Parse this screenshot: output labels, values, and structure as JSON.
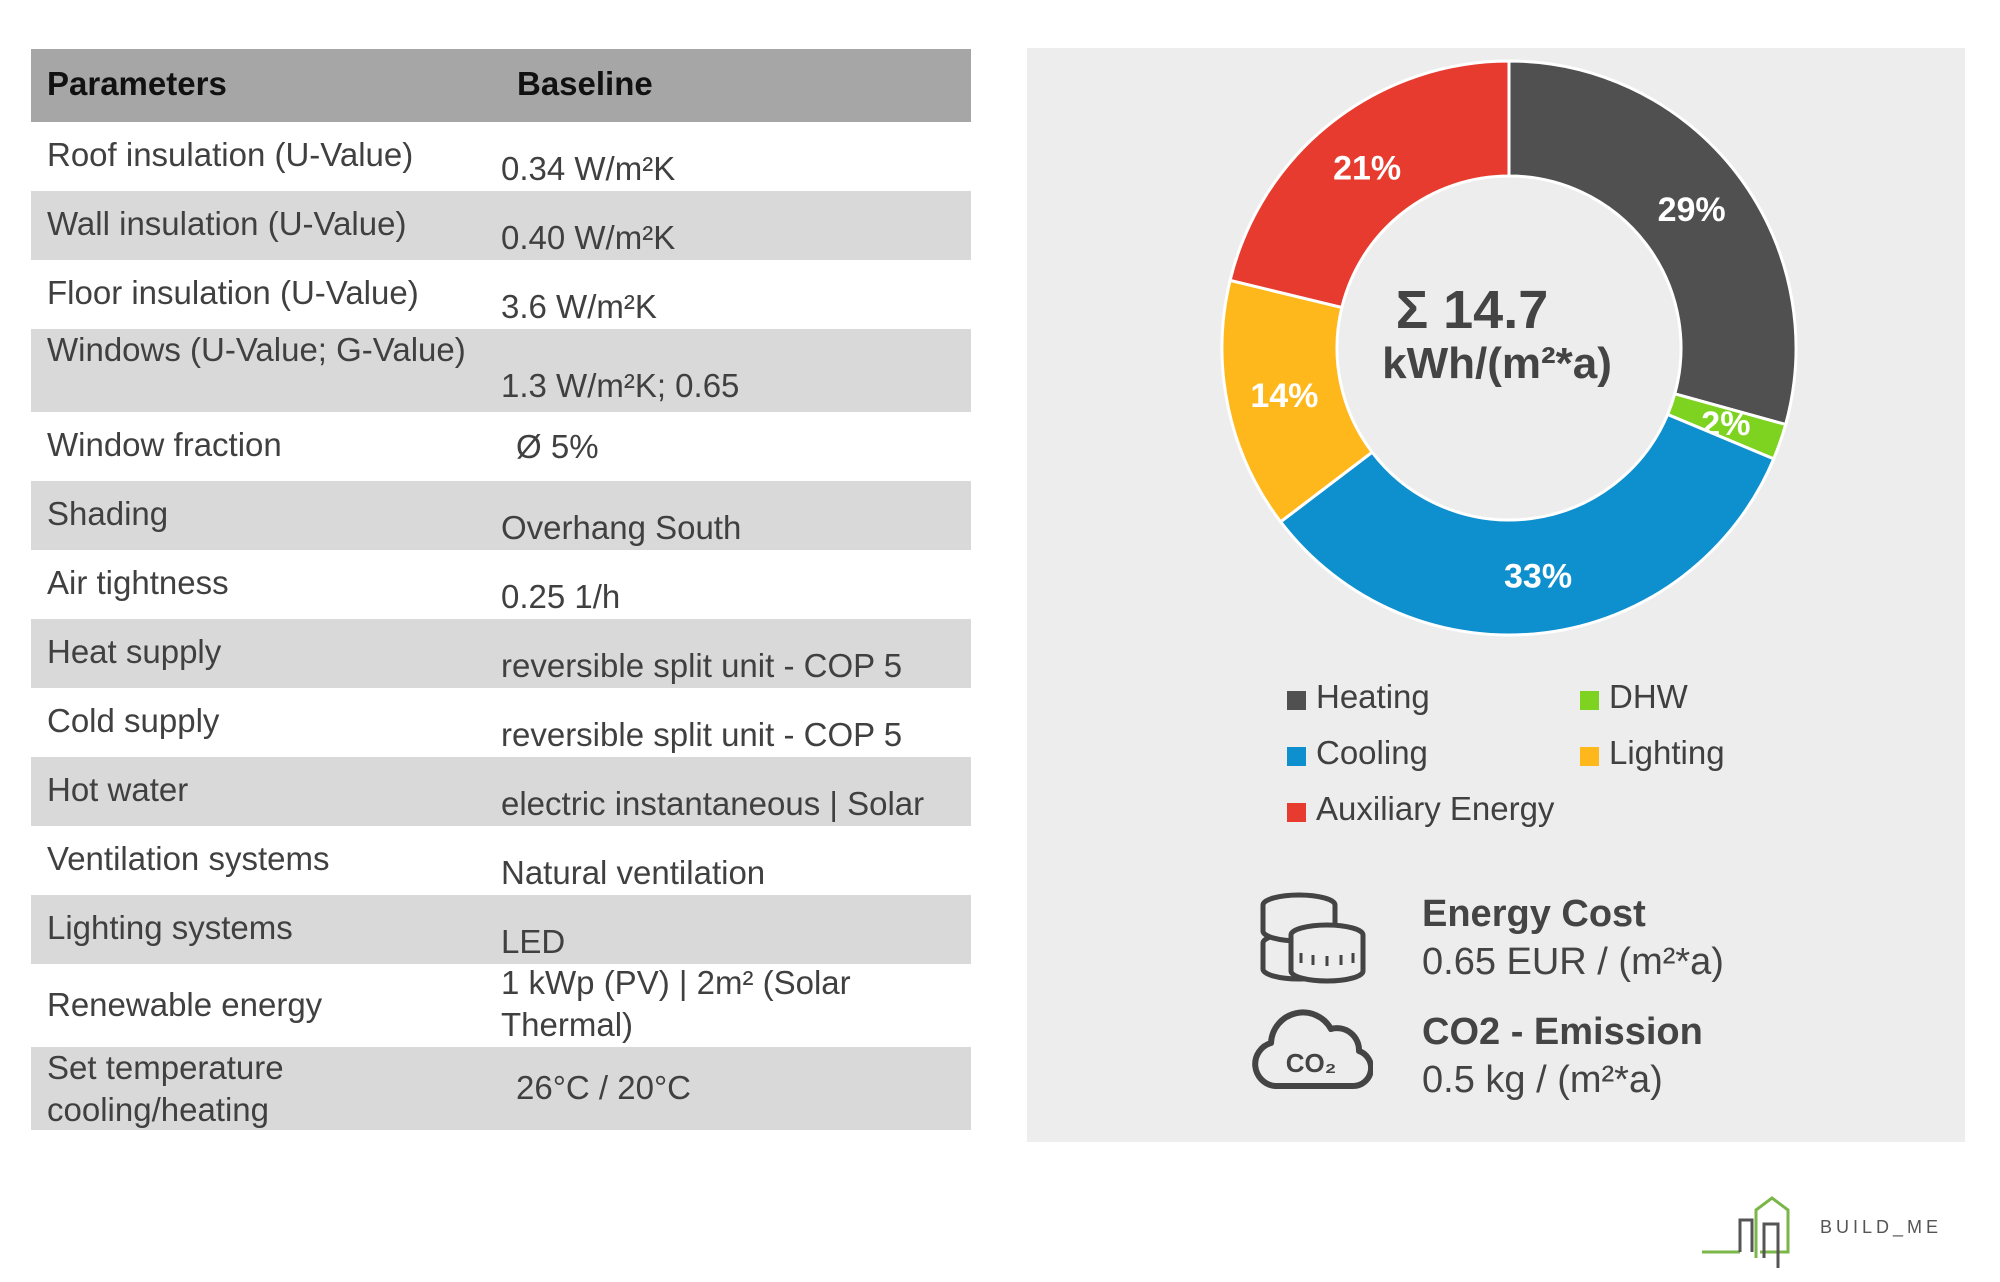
{
  "table": {
    "header": {
      "param": "Parameters",
      "baseline": "Baseline"
    },
    "rows": [
      {
        "param": "Roof insulation (U-Value)",
        "value": "0.34 W/m²K"
      },
      {
        "param": "Wall insulation (U-Value)",
        "value": "0.40 W/m²K"
      },
      {
        "param": "Floor insulation (U-Value)",
        "value": "3.6 W/m²K"
      },
      {
        "param": "Windows (U-Value; G-Value)",
        "value": "1.3 W/m²K; 0.65"
      },
      {
        "param": "Window fraction",
        "value": "Ø 5%"
      },
      {
        "param": "Shading",
        "value": "Overhang South"
      },
      {
        "param": "Air tightness",
        "value": "0.25 1/h"
      },
      {
        "param": "Heat supply",
        "value": "reversible split unit - COP 5"
      },
      {
        "param": "Cold supply",
        "value": "reversible split unit - COP 5"
      },
      {
        "param": "Hot water",
        "value": "electric instantaneous | Solar"
      },
      {
        "param": "Ventilation systems",
        "value": "Natural ventilation"
      },
      {
        "param": "Lighting systems",
        "value": "LED"
      },
      {
        "param": "Renewable energy",
        "value": "1 kWp (PV) | 2m² (Solar Thermal)"
      },
      {
        "param": "Set temperature cooling/heating",
        "value": "26°C / 20°C"
      }
    ]
  },
  "chart_data": {
    "type": "pie",
    "donut": true,
    "center_value": "Σ 14.7",
    "center_unit": "kWh/(m²*a)",
    "slices": [
      {
        "name": "Heating",
        "value": 29,
        "label": "29%",
        "color": "#505050"
      },
      {
        "name": "DHW",
        "value": 2,
        "label": "2%",
        "color": "#7ed321"
      },
      {
        "name": "Cooling",
        "value": 33,
        "label": "33%",
        "color": "#0e8fce"
      },
      {
        "name": "Lighting",
        "value": 14,
        "label": "14%",
        "color": "#ffb81c"
      },
      {
        "name": "Auxiliary Energy",
        "value": 21,
        "label": "21%",
        "color": "#e63b2e"
      }
    ],
    "legend_order": [
      "Heating",
      "DHW",
      "Cooling",
      "Lighting",
      "Auxiliary Energy"
    ],
    "legend_position": "bottom"
  },
  "metrics": {
    "energy_cost": {
      "title": "Energy Cost",
      "value": "0.65 EUR / (m²*a)",
      "icon": "coins-icon"
    },
    "co2": {
      "title": "CO2 - Emission",
      "value": "0.5 kg / (m²*a)",
      "icon": "co2-cloud-icon",
      "icon_text": "CO₂"
    }
  },
  "logo": {
    "text": "BUILD_ME"
  }
}
